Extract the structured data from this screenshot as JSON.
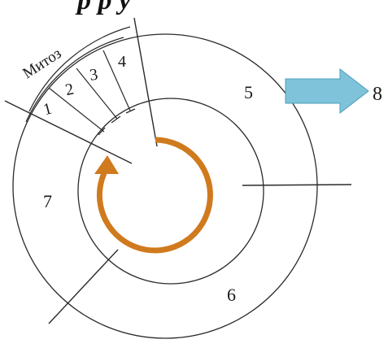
{
  "diagram": {
    "header_fragment": "р р у",
    "mitosis_label": "Митоз",
    "phase_labels": {
      "p1": "1",
      "p2": "2",
      "p3": "3",
      "p4": "4",
      "p5": "5",
      "p6": "6",
      "p7": "7"
    },
    "exit_label": "8",
    "colors": {
      "cycle_arrow": "#d07a1e",
      "exit_arrow": "#7fc3da",
      "lines": "#2a2a2a"
    }
  }
}
